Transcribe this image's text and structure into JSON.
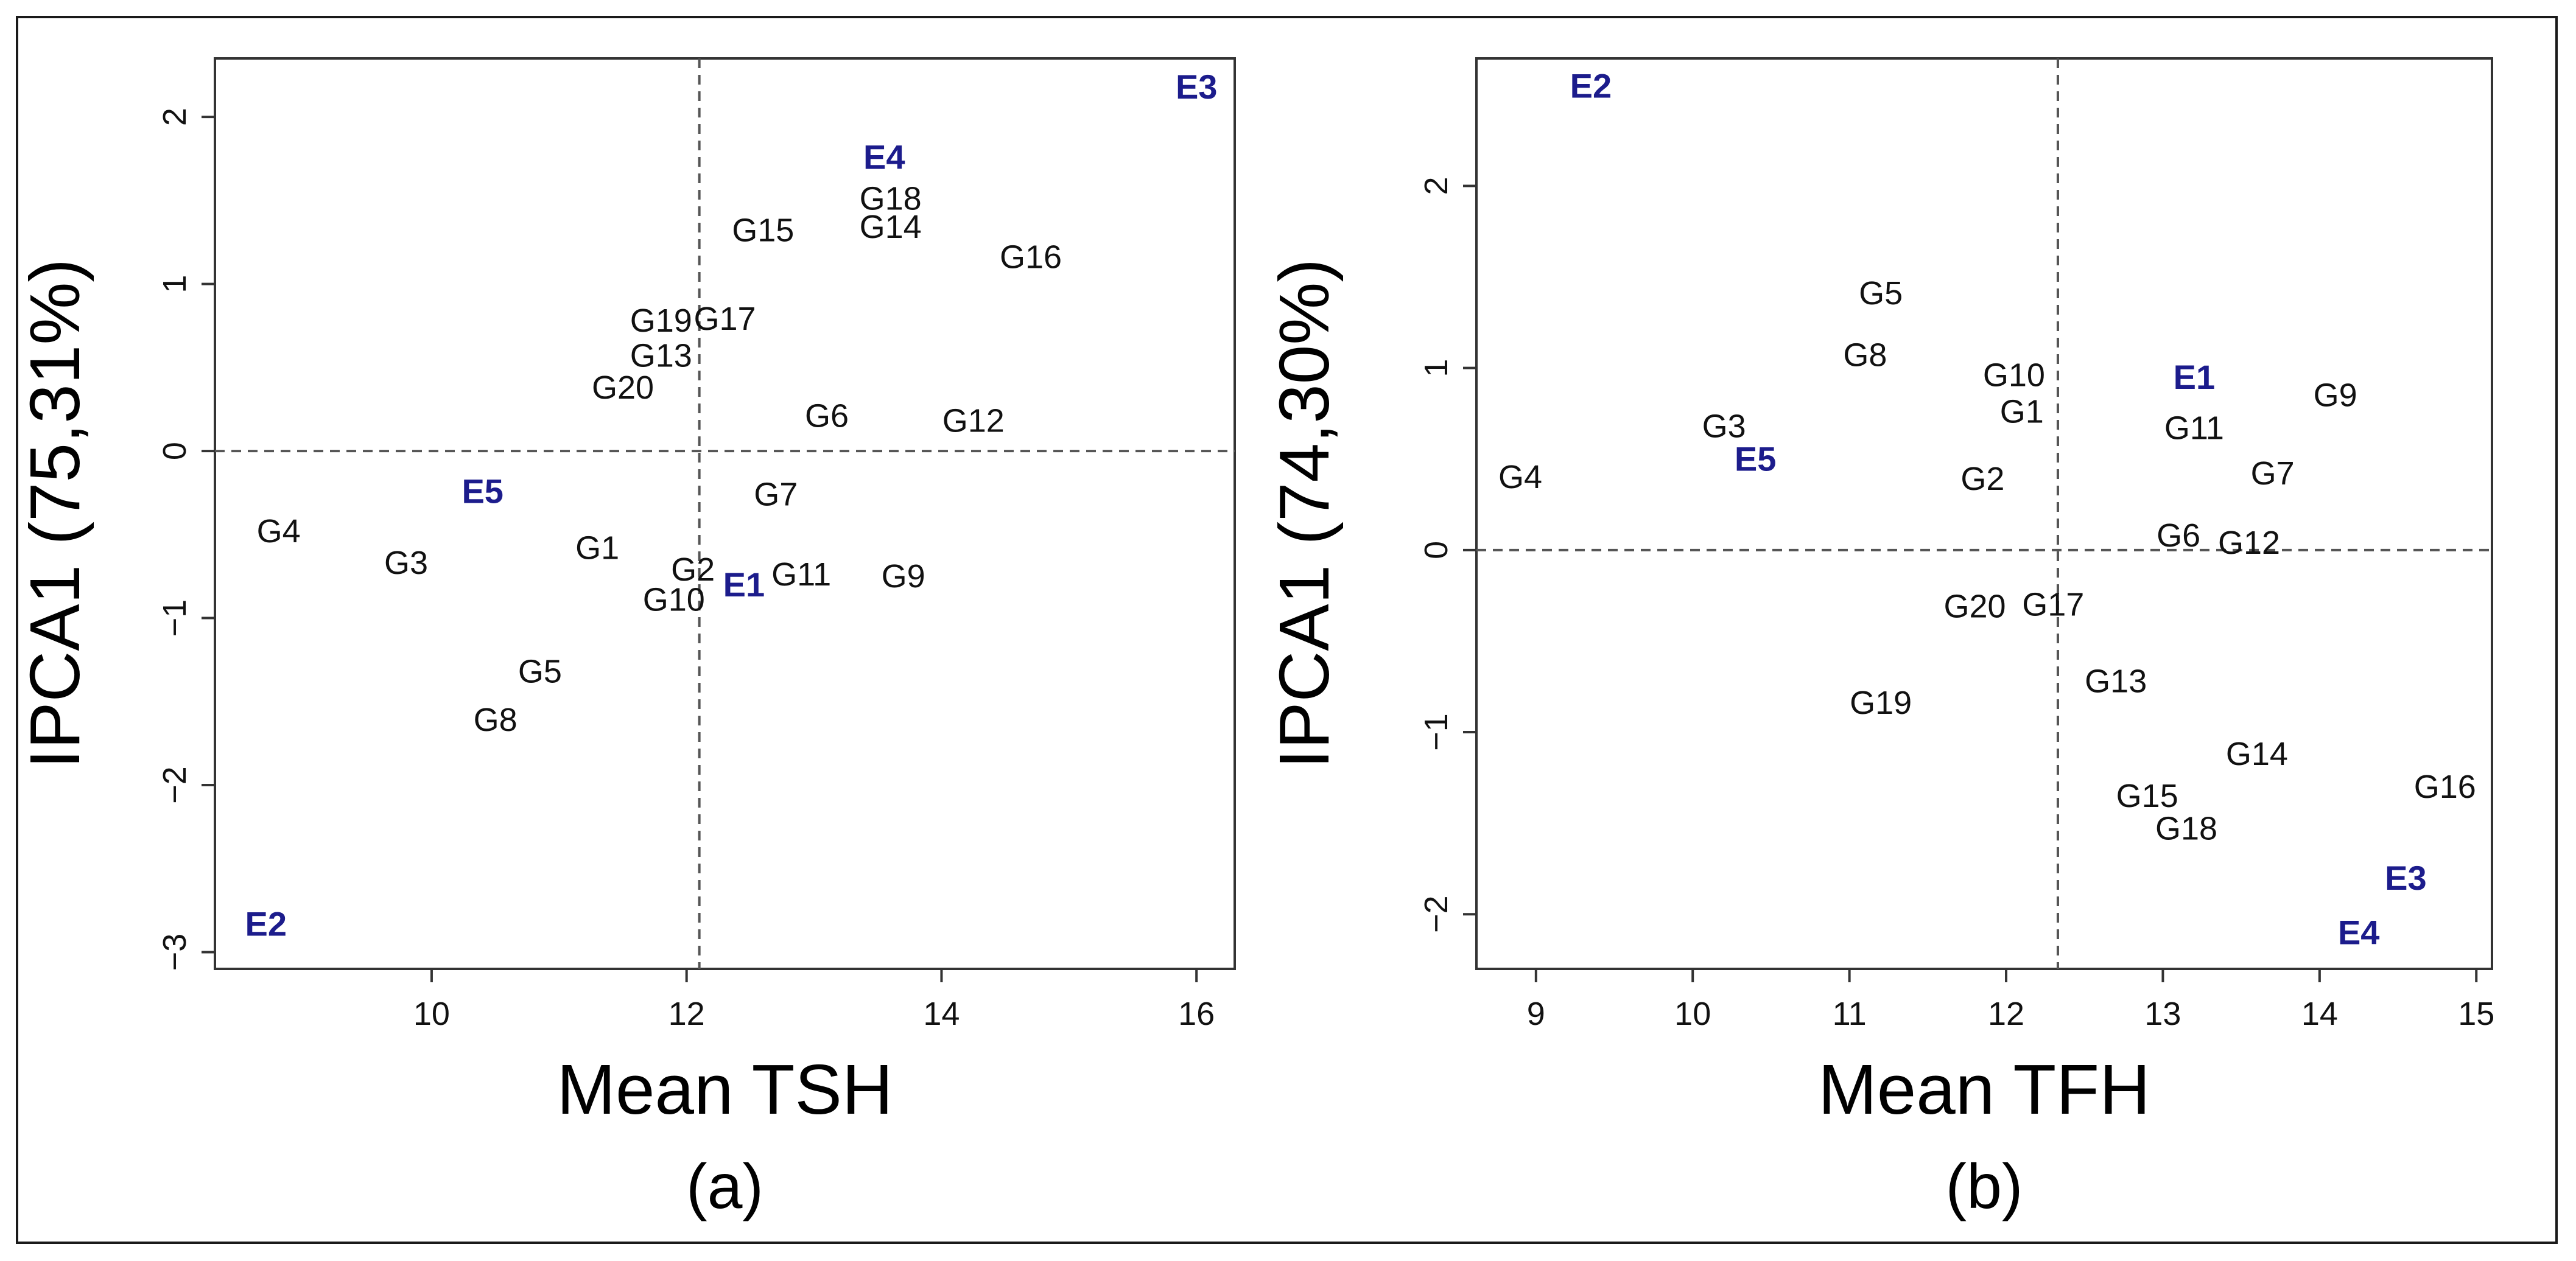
{
  "colors": {
    "genotype": "#111111",
    "environment": "#1c1c8c",
    "axes": "#333333"
  },
  "chart_data": [
    {
      "type": "scatter",
      "panel_label": "(a)",
      "xlabel": "Mean TSH",
      "ylabel": "IPCA1 (75,31%)",
      "xlim": [
        8.3,
        16.3
      ],
      "ylim": [
        -3.1,
        2.35
      ],
      "xticks": [
        10,
        12,
        14,
        16
      ],
      "xtick_labels": [
        "10",
        "12",
        "14",
        "16"
      ],
      "yticks": [
        -3,
        -2,
        -1,
        0,
        1,
        2
      ],
      "ytick_labels": [
        "−3",
        "−2",
        "−1",
        "0",
        "1",
        "2"
      ],
      "grand_mean_x": 12.1,
      "reference_y": 0,
      "points": [
        {
          "label": "G1",
          "x": 11.3,
          "y": -0.58,
          "kind": "genotype"
        },
        {
          "label": "G2",
          "x": 12.05,
          "y": -0.71,
          "kind": "genotype"
        },
        {
          "label": "G3",
          "x": 9.8,
          "y": -0.67,
          "kind": "genotype"
        },
        {
          "label": "G4",
          "x": 8.8,
          "y": -0.48,
          "kind": "genotype"
        },
        {
          "label": "G5",
          "x": 10.85,
          "y": -1.32,
          "kind": "genotype"
        },
        {
          "label": "G6",
          "x": 13.1,
          "y": 0.21,
          "kind": "genotype"
        },
        {
          "label": "G7",
          "x": 12.7,
          "y": -0.26,
          "kind": "genotype"
        },
        {
          "label": "G8",
          "x": 10.5,
          "y": -1.61,
          "kind": "genotype"
        },
        {
          "label": "G9",
          "x": 13.7,
          "y": -0.75,
          "kind": "genotype"
        },
        {
          "label": "G10",
          "x": 11.9,
          "y": -0.89,
          "kind": "genotype"
        },
        {
          "label": "G11",
          "x": 12.9,
          "y": -0.74,
          "kind": "genotype"
        },
        {
          "label": "G12",
          "x": 14.25,
          "y": 0.18,
          "kind": "genotype"
        },
        {
          "label": "G13",
          "x": 11.8,
          "y": 0.57,
          "kind": "genotype"
        },
        {
          "label": "G14",
          "x": 13.6,
          "y": 1.34,
          "kind": "genotype"
        },
        {
          "label": "G15",
          "x": 12.6,
          "y": 1.32,
          "kind": "genotype"
        },
        {
          "label": "G16",
          "x": 14.7,
          "y": 1.16,
          "kind": "genotype"
        },
        {
          "label": "G17",
          "x": 12.3,
          "y": 0.79,
          "kind": "genotype"
        },
        {
          "label": "G18",
          "x": 13.6,
          "y": 1.51,
          "kind": "genotype"
        },
        {
          "label": "G19",
          "x": 11.8,
          "y": 0.78,
          "kind": "genotype"
        },
        {
          "label": "G20",
          "x": 11.5,
          "y": 0.38,
          "kind": "genotype"
        },
        {
          "label": "E1",
          "x": 12.45,
          "y": -0.8,
          "kind": "environment"
        },
        {
          "label": "E2",
          "x": 8.7,
          "y": -2.83,
          "kind": "environment"
        },
        {
          "label": "E3",
          "x": 16.0,
          "y": 2.18,
          "kind": "environment"
        },
        {
          "label": "E4",
          "x": 13.55,
          "y": 1.76,
          "kind": "environment"
        },
        {
          "label": "E5",
          "x": 10.4,
          "y": -0.24,
          "kind": "environment"
        }
      ]
    },
    {
      "type": "scatter",
      "panel_label": "(b)",
      "xlabel": "Mean TFH",
      "ylabel": "IPCA1 (74,30%)",
      "xlim": [
        8.62,
        15.1
      ],
      "ylim": [
        -2.3,
        2.7
      ],
      "xticks": [
        9,
        10,
        11,
        12,
        13,
        14,
        15
      ],
      "xtick_labels": [
        "9",
        "10",
        "11",
        "12",
        "13",
        "14",
        "15"
      ],
      "yticks": [
        -2,
        -1,
        0,
        1,
        2
      ],
      "ytick_labels": [
        "−2",
        "−1",
        "0",
        "1",
        "2"
      ],
      "grand_mean_x": 12.33,
      "reference_y": 0,
      "points": [
        {
          "label": "G1",
          "x": 12.1,
          "y": 0.76,
          "kind": "genotype"
        },
        {
          "label": "G2",
          "x": 11.85,
          "y": 0.39,
          "kind": "genotype"
        },
        {
          "label": "G3",
          "x": 10.2,
          "y": 0.68,
          "kind": "genotype"
        },
        {
          "label": "G4",
          "x": 8.9,
          "y": 0.4,
          "kind": "genotype"
        },
        {
          "label": "G5",
          "x": 11.2,
          "y": 1.41,
          "kind": "genotype"
        },
        {
          "label": "G6",
          "x": 13.1,
          "y": 0.08,
          "kind": "genotype"
        },
        {
          "label": "G7",
          "x": 13.7,
          "y": 0.42,
          "kind": "genotype"
        },
        {
          "label": "G8",
          "x": 11.1,
          "y": 1.07,
          "kind": "genotype"
        },
        {
          "label": "G9",
          "x": 14.1,
          "y": 0.85,
          "kind": "genotype"
        },
        {
          "label": "G10",
          "x": 12.05,
          "y": 0.96,
          "kind": "genotype"
        },
        {
          "label": "G11",
          "x": 13.2,
          "y": 0.67,
          "kind": "genotype"
        },
        {
          "label": "G12",
          "x": 13.55,
          "y": 0.04,
          "kind": "genotype"
        },
        {
          "label": "G13",
          "x": 12.7,
          "y": -0.72,
          "kind": "genotype"
        },
        {
          "label": "G14",
          "x": 13.6,
          "y": -1.12,
          "kind": "genotype"
        },
        {
          "label": "G15",
          "x": 12.9,
          "y": -1.35,
          "kind": "genotype"
        },
        {
          "label": "G16",
          "x": 14.8,
          "y": -1.3,
          "kind": "genotype"
        },
        {
          "label": "G17",
          "x": 12.3,
          "y": -0.3,
          "kind": "genotype"
        },
        {
          "label": "G18",
          "x": 13.15,
          "y": -1.53,
          "kind": "genotype"
        },
        {
          "label": "G19",
          "x": 11.2,
          "y": -0.84,
          "kind": "genotype"
        },
        {
          "label": "G20",
          "x": 11.8,
          "y": -0.31,
          "kind": "genotype"
        },
        {
          "label": "E1",
          "x": 13.2,
          "y": 0.95,
          "kind": "environment"
        },
        {
          "label": "E2",
          "x": 9.35,
          "y": 2.55,
          "kind": "environment"
        },
        {
          "label": "E3",
          "x": 14.55,
          "y": -1.8,
          "kind": "environment"
        },
        {
          "label": "E4",
          "x": 14.25,
          "y": -2.1,
          "kind": "environment"
        },
        {
          "label": "E5",
          "x": 10.4,
          "y": 0.5,
          "kind": "environment"
        }
      ]
    }
  ]
}
